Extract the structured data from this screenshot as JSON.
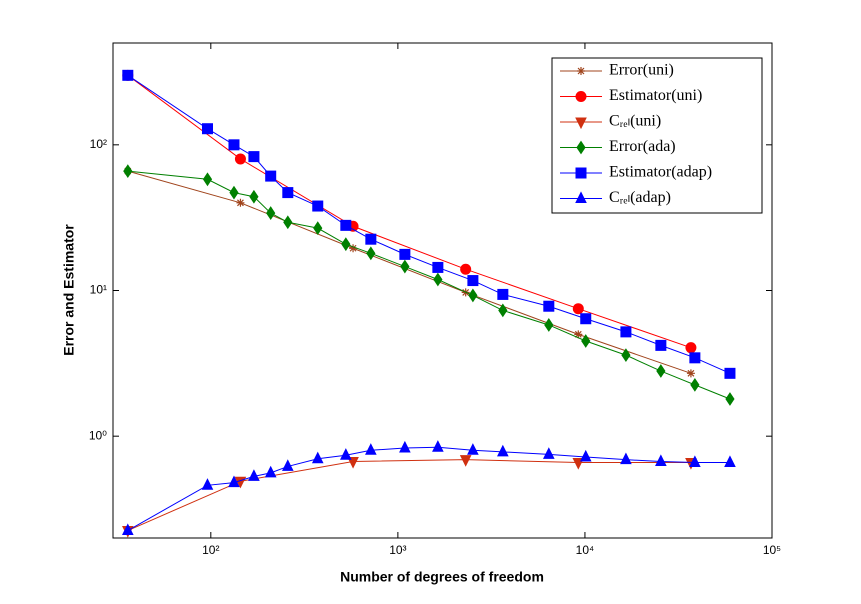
{
  "chart_data": {
    "type": "line",
    "xlabel": "Number of degrees of freedom",
    "ylabel": "Error and Estimator",
    "xscale": "log",
    "yscale": "log",
    "xlim": [
      30,
      100000
    ],
    "ylim": [
      0.2,
      500
    ],
    "xticks": [
      {
        "value": 100,
        "label": "10²"
      },
      {
        "value": 1000,
        "label": "10³"
      },
      {
        "value": 10000,
        "label": "10⁴"
      },
      {
        "value": 100000,
        "label": "10⁵"
      }
    ],
    "yticks": [
      {
        "value": 1,
        "label": "10⁰"
      },
      {
        "value": 10,
        "label": "10¹"
      },
      {
        "value": 100,
        "label": "10²"
      }
    ],
    "legend": "upper right",
    "series": [
      {
        "name": "Error(uni)",
        "color": "#a0441c",
        "marker": "star",
        "x": [
          36,
          144,
          576,
          2304,
          9216,
          36864
        ],
        "values": [
          66,
          40,
          19.5,
          9.7,
          5.0,
          2.7
        ]
      },
      {
        "name": "Estimator(uni)",
        "color": "#ff0000",
        "marker": "circle",
        "x": [
          36,
          144,
          576,
          2304,
          9216,
          36864
        ],
        "values": [
          300,
          80,
          27.6,
          14,
          7.5,
          4.05
        ]
      },
      {
        "name": "Cᵣₑₗ(uni)",
        "color": "#d03010",
        "marker": "triangle-down",
        "x": [
          36,
          144,
          576,
          2304,
          9216,
          36864
        ],
        "values": [
          0.225,
          0.49,
          0.67,
          0.69,
          0.66,
          0.66
        ]
      },
      {
        "name": "Error(ada)",
        "color": "#008000",
        "marker": "diamond",
        "x": [
          36,
          96,
          133,
          170,
          209,
          258,
          373,
          527,
          717,
          1090,
          1636,
          2518,
          3640,
          6410,
          10100,
          16560,
          25460,
          38700,
          59600
        ],
        "values": [
          66,
          58,
          47,
          44,
          34,
          29.4,
          26.8,
          20.8,
          18,
          14.6,
          11.9,
          9.25,
          7.3,
          5.8,
          4.5,
          3.6,
          2.8,
          2.25,
          1.8
        ]
      },
      {
        "name": "Estimator(adap)",
        "color": "#0000ff",
        "marker": "square",
        "x": [
          36,
          96,
          133,
          170,
          209,
          258,
          373,
          527,
          717,
          1090,
          1636,
          2518,
          3640,
          6410,
          10100,
          16560,
          25460,
          38700,
          59600
        ],
        "values": [
          300,
          129,
          100,
          83,
          61,
          47,
          38,
          28,
          22.5,
          17.7,
          14.4,
          11.7,
          9.4,
          7.8,
          6.4,
          5.2,
          4.2,
          3.45,
          2.7
        ]
      },
      {
        "name": "Cᵣₑₗ(adap)",
        "color": "#0000ff",
        "marker": "triangle-up",
        "x": [
          36,
          96,
          133,
          170,
          209,
          258,
          373,
          527,
          717,
          1090,
          1636,
          2518,
          3640,
          6410,
          10100,
          16560,
          25460,
          38700,
          59600
        ],
        "values": [
          0.225,
          0.46,
          0.48,
          0.53,
          0.56,
          0.62,
          0.7,
          0.74,
          0.8,
          0.83,
          0.84,
          0.8,
          0.78,
          0.75,
          0.72,
          0.69,
          0.67,
          0.66,
          0.66
        ]
      }
    ]
  }
}
